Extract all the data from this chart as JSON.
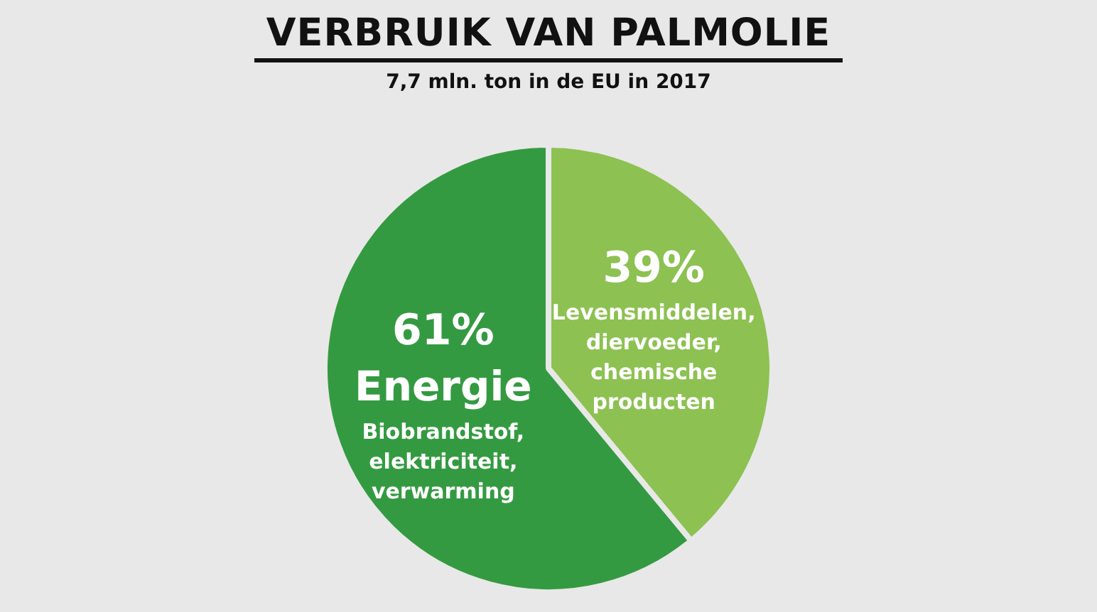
{
  "chart_data": {
    "type": "pie",
    "title": "VERBRUIK VAN PALMOLIE",
    "subtitle": "7,7 mln. ton in de EU in 2017",
    "categories": [
      "Levensmiddelen, diervoeder, chemische producten",
      "Energie"
    ],
    "values": [
      39,
      61
    ],
    "colors": [
      "#8dc152",
      "#349a41"
    ],
    "value_labels": [
      "39%",
      "61%"
    ],
    "annotations": [
      "Biobrandstof, elektriciteit, verwarming"
    ],
    "legend": false
  }
}
